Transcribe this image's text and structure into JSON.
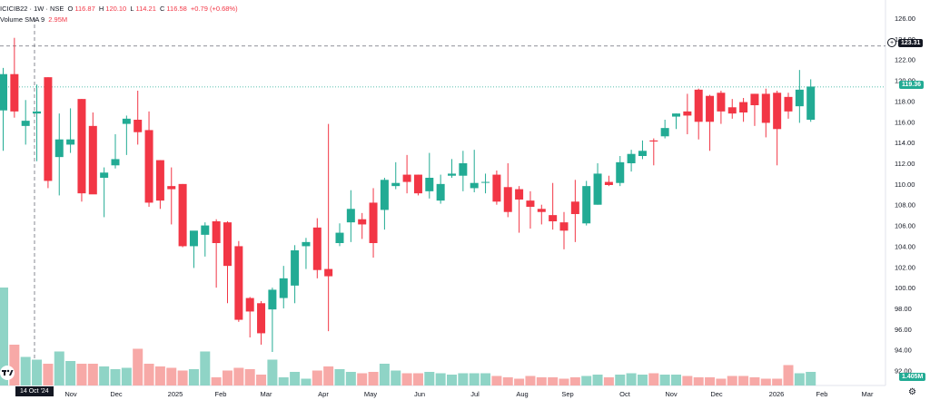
{
  "legend": {
    "symbol": "ICICIB22 · 1W · NSE",
    "o_label": "O",
    "o_value": "116.87",
    "h_label": "H",
    "h_value": "120.10",
    "l_label": "L",
    "l_value": "114.21",
    "c_label": "C",
    "c_value": "116.58",
    "change": "+0.79 (+0.68%)",
    "volume_label": "Volume SMA 9",
    "volume_value": "2.95M"
  },
  "badges": {
    "crosshair_price": "123.31",
    "last_price": "119.36",
    "volume": "1.405M",
    "crosshair_date": "14 Oct '24"
  },
  "colors": {
    "up": "#22ab94",
    "down": "#f23645",
    "up_vol": "#8fd4c6",
    "down_vol": "#f7a9a7"
  },
  "icons": {
    "logo": "tradingview-logo",
    "settings": "gear-icon",
    "price_marker": "plus-circle-icon"
  },
  "chart_data": {
    "type": "candlestick",
    "interval": "1W",
    "y_axis": {
      "range": [
        91,
        126
      ],
      "ticks": [
        "126.00",
        "124.00",
        "122.00",
        "120.00",
        "118.00",
        "116.00",
        "114.00",
        "112.00",
        "110.00",
        "108.00",
        "106.00",
        "104.00",
        "102.00",
        "100.00",
        "98.00",
        "96.00",
        "94.00",
        "92.00"
      ]
    },
    "x_ticks": [
      "Nov",
      "Dec",
      "2025",
      "Feb",
      "Mar",
      "Apr",
      "May",
      "Jun",
      "Jul",
      "Aug",
      "Sep",
      "Oct",
      "Nov",
      "Dec",
      "2026",
      "Feb",
      "Mar"
    ],
    "crosshair_price": 123.31,
    "last_price": 119.36,
    "candles": [
      {
        "o": 117.1,
        "h": 121.2,
        "l": 113.2,
        "c": 120.6
      },
      {
        "o": 120.6,
        "h": 124.1,
        "l": 116.4,
        "c": 117.0
      },
      {
        "o": 115.6,
        "h": 118.1,
        "l": 113.8,
        "c": 116.1
      },
      {
        "o": 116.8,
        "h": 119.6,
        "l": 112.2,
        "c": 117.0
      },
      {
        "o": 120.3,
        "h": 120.3,
        "l": 109.6,
        "c": 110.3
      },
      {
        "o": 112.6,
        "h": 116.8,
        "l": 108.9,
        "c": 114.3
      },
      {
        "o": 113.8,
        "h": 117.3,
        "l": 113.0,
        "c": 114.3
      },
      {
        "o": 118.2,
        "h": 118.2,
        "l": 108.3,
        "c": 109.1
      },
      {
        "o": 115.6,
        "h": 116.9,
        "l": 109.2,
        "c": 109.0
      },
      {
        "o": 110.6,
        "h": 111.6,
        "l": 106.8,
        "c": 111.1
      },
      {
        "o": 111.8,
        "h": 114.8,
        "l": 111.5,
        "c": 112.4
      },
      {
        "o": 115.8,
        "h": 116.6,
        "l": 112.8,
        "c": 116.3
      },
      {
        "o": 116.2,
        "h": 119.0,
        "l": 113.8,
        "c": 115.0
      },
      {
        "o": 115.2,
        "h": 117.0,
        "l": 107.8,
        "c": 108.2
      },
      {
        "o": 112.3,
        "h": 112.3,
        "l": 107.6,
        "c": 108.4
      },
      {
        "o": 109.8,
        "h": 111.6,
        "l": 106.1,
        "c": 109.5
      },
      {
        "o": 110.0,
        "h": 110.0,
        "l": 103.9,
        "c": 104.0
      },
      {
        "o": 104.0,
        "h": 105.4,
        "l": 101.9,
        "c": 105.5
      },
      {
        "o": 105.1,
        "h": 106.3,
        "l": 103.0,
        "c": 106.0
      },
      {
        "o": 106.4,
        "h": 106.6,
        "l": 100.0,
        "c": 104.3
      },
      {
        "o": 106.3,
        "h": 106.4,
        "l": 98.5,
        "c": 102.1
      },
      {
        "o": 104.0,
        "h": 104.5,
        "l": 96.7,
        "c": 96.9
      },
      {
        "o": 99.0,
        "h": 99.1,
        "l": 95.2,
        "c": 97.7
      },
      {
        "o": 98.5,
        "h": 98.7,
        "l": 94.5,
        "c": 95.6
      },
      {
        "o": 97.9,
        "h": 100.0,
        "l": 93.8,
        "c": 99.8
      },
      {
        "o": 99.0,
        "h": 102.1,
        "l": 98.0,
        "c": 100.9
      },
      {
        "o": 100.2,
        "h": 104.1,
        "l": 98.5,
        "c": 103.6
      },
      {
        "o": 104.0,
        "h": 104.8,
        "l": 101.8,
        "c": 104.4
      },
      {
        "o": 105.8,
        "h": 106.7,
        "l": 100.9,
        "c": 101.7
      },
      {
        "o": 101.8,
        "h": 115.8,
        "l": 95.8,
        "c": 101.1
      },
      {
        "o": 104.3,
        "h": 106.2,
        "l": 104.0,
        "c": 105.3
      },
      {
        "o": 106.3,
        "h": 109.4,
        "l": 104.4,
        "c": 107.6
      },
      {
        "o": 106.6,
        "h": 107.2,
        "l": 104.7,
        "c": 106.1
      },
      {
        "o": 108.2,
        "h": 109.6,
        "l": 102.9,
        "c": 104.3
      },
      {
        "o": 107.5,
        "h": 110.6,
        "l": 105.6,
        "c": 110.4
      },
      {
        "o": 109.8,
        "h": 112.1,
        "l": 109.5,
        "c": 110.1
      },
      {
        "o": 110.9,
        "h": 112.8,
        "l": 109.1,
        "c": 110.2
      },
      {
        "o": 110.9,
        "h": 110.9,
        "l": 108.9,
        "c": 109.1
      },
      {
        "o": 109.3,
        "h": 113.0,
        "l": 108.6,
        "c": 110.6
      },
      {
        "o": 108.4,
        "h": 110.9,
        "l": 108.1,
        "c": 110.0
      },
      {
        "o": 110.8,
        "h": 112.4,
        "l": 110.6,
        "c": 111.0
      },
      {
        "o": 110.8,
        "h": 113.2,
        "l": 109.3,
        "c": 112.0
      },
      {
        "o": 109.6,
        "h": 113.3,
        "l": 109.2,
        "c": 110.1
      },
      {
        "o": 110.2,
        "h": 111.0,
        "l": 109.1,
        "c": 110.2
      },
      {
        "o": 110.9,
        "h": 111.3,
        "l": 108.0,
        "c": 108.3
      },
      {
        "o": 109.7,
        "h": 112.0,
        "l": 106.8,
        "c": 107.3
      },
      {
        "o": 109.5,
        "h": 109.8,
        "l": 105.3,
        "c": 108.5
      },
      {
        "o": 108.4,
        "h": 109.3,
        "l": 105.7,
        "c": 107.8
      },
      {
        "o": 107.6,
        "h": 108.0,
        "l": 106.1,
        "c": 107.3
      },
      {
        "o": 107.0,
        "h": 110.1,
        "l": 105.6,
        "c": 106.4
      },
      {
        "o": 106.3,
        "h": 107.3,
        "l": 103.7,
        "c": 105.5
      },
      {
        "o": 108.3,
        "h": 110.4,
        "l": 104.4,
        "c": 107.1
      },
      {
        "o": 106.2,
        "h": 110.3,
        "l": 106.0,
        "c": 109.8
      },
      {
        "o": 108.0,
        "h": 112.0,
        "l": 108.0,
        "c": 111.0
      },
      {
        "o": 110.2,
        "h": 110.8,
        "l": 109.8,
        "c": 109.9
      },
      {
        "o": 110.1,
        "h": 112.7,
        "l": 109.8,
        "c": 112.1
      },
      {
        "o": 112.0,
        "h": 113.3,
        "l": 111.2,
        "c": 112.9
      },
      {
        "o": 112.7,
        "h": 114.2,
        "l": 112.4,
        "c": 113.2
      },
      {
        "o": 114.2,
        "h": 114.4,
        "l": 111.8,
        "c": 114.1
      },
      {
        "o": 114.6,
        "h": 116.2,
        "l": 114.4,
        "c": 115.4
      },
      {
        "o": 116.5,
        "h": 116.8,
        "l": 115.3,
        "c": 116.8
      },
      {
        "o": 117.0,
        "h": 118.7,
        "l": 114.8,
        "c": 116.6
      },
      {
        "o": 119.1,
        "h": 119.2,
        "l": 114.3,
        "c": 116.0
      },
      {
        "o": 118.5,
        "h": 118.6,
        "l": 113.2,
        "c": 116.0
      },
      {
        "o": 118.8,
        "h": 119.0,
        "l": 115.8,
        "c": 117.0
      },
      {
        "o": 117.4,
        "h": 118.2,
        "l": 116.3,
        "c": 116.8
      },
      {
        "o": 117.9,
        "h": 118.3,
        "l": 116.0,
        "c": 116.9
      },
      {
        "o": 118.7,
        "h": 118.7,
        "l": 115.6,
        "c": 117.6
      },
      {
        "o": 118.7,
        "h": 119.2,
        "l": 114.5,
        "c": 115.9
      },
      {
        "o": 118.8,
        "h": 119.0,
        "l": 111.8,
        "c": 115.3
      },
      {
        "o": 118.4,
        "h": 118.8,
        "l": 116.3,
        "c": 117.0
      },
      {
        "o": 117.5,
        "h": 121.0,
        "l": 115.9,
        "c": 119.1
      },
      {
        "o": 116.2,
        "h": 120.1,
        "l": 116.0,
        "c": 119.4
      }
    ],
    "volumes": [
      7.2,
      3.0,
      2.1,
      1.9,
      1.6,
      2.5,
      1.8,
      1.6,
      1.6,
      1.4,
      1.2,
      1.3,
      2.7,
      1.6,
      1.4,
      1.3,
      1.1,
      1.2,
      2.5,
      0.6,
      1.1,
      1.3,
      1.2,
      0.8,
      1.9,
      0.6,
      1.0,
      0.5,
      1.1,
      1.4,
      1.2,
      1.0,
      0.9,
      1.0,
      1.6,
      1.1,
      0.9,
      0.9,
      1.0,
      0.9,
      0.8,
      0.9,
      0.9,
      0.9,
      0.7,
      0.6,
      0.5,
      0.7,
      0.6,
      0.6,
      0.5,
      0.6,
      0.7,
      0.8,
      0.6,
      0.8,
      0.9,
      0.8,
      0.9,
      0.8,
      0.8,
      0.7,
      0.6,
      0.6,
      0.5,
      0.7,
      0.7,
      0.6,
      0.5,
      0.5,
      1.5,
      0.9,
      1.0
    ]
  }
}
